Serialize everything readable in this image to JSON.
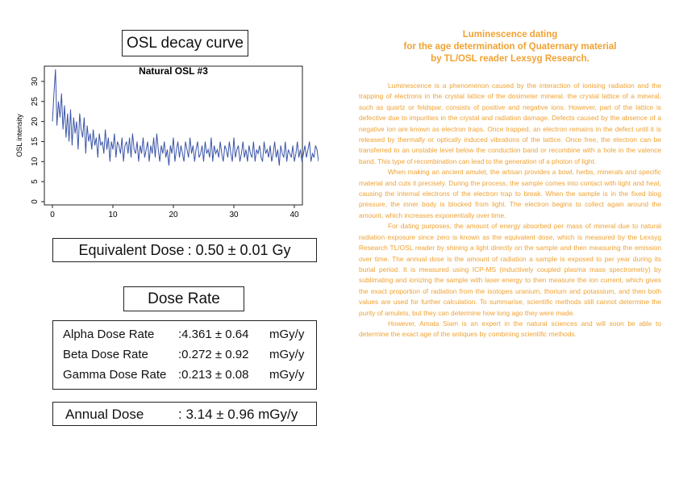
{
  "osl_title": "OSL decay curve",
  "chart_data": {
    "type": "line",
    "title": "Natural OSL #3",
    "xlabel": "",
    "ylabel": "OSL intensity",
    "xlim": [
      0,
      40
    ],
    "ylim": [
      0,
      33
    ],
    "x_ticks": [
      "0",
      "10",
      "20",
      "30",
      "40"
    ],
    "y_ticks": [
      "0",
      "5",
      "10",
      "15",
      "20",
      "25",
      "30"
    ],
    "x_start": 0,
    "x_step": 0.25,
    "color": "#3a55a8",
    "grid": false,
    "series": [
      {
        "values": [
          20,
          27,
          33,
          19,
          25,
          21,
          27,
          18,
          24,
          16,
          22,
          15,
          23,
          14,
          21,
          17,
          20,
          13,
          22,
          18,
          16,
          21,
          12,
          19,
          15,
          17,
          13,
          18,
          14,
          16,
          11,
          17,
          14,
          15,
          12,
          18,
          13,
          16,
          10,
          15,
          13,
          17,
          11,
          15,
          14,
          12,
          16,
          10,
          14,
          15,
          12,
          16,
          11,
          17,
          13,
          12,
          15,
          10,
          14,
          12,
          16,
          11,
          13,
          15,
          10,
          14,
          12,
          16,
          11,
          17,
          13,
          10,
          14,
          12,
          15,
          11,
          13,
          9,
          14,
          12,
          16,
          10,
          13,
          15,
          11,
          14,
          12,
          10,
          15,
          13,
          11,
          16,
          12,
          14,
          10,
          13,
          15,
          11,
          12,
          14,
          10,
          15,
          12,
          13,
          11,
          16,
          10,
          14,
          12,
          13,
          11,
          15,
          12,
          10,
          14,
          13,
          11,
          15,
          12,
          10,
          16,
          11,
          13,
          14,
          10,
          12,
          15,
          11,
          13,
          10,
          14,
          12,
          11,
          15,
          10,
          13,
          12,
          14,
          11,
          10,
          15,
          12,
          13,
          11,
          14,
          10,
          12,
          15,
          11,
          13,
          9,
          14,
          12,
          11,
          15,
          10,
          13,
          12,
          11,
          14,
          10,
          12,
          15,
          11,
          13,
          10,
          12,
          14,
          11,
          13,
          15,
          10,
          12,
          11,
          14,
          13,
          10,
          12,
          11,
          15,
          12,
          10,
          13,
          11,
          14,
          12,
          10,
          13,
          11,
          15,
          12,
          10,
          14,
          11,
          13,
          12,
          10,
          15,
          11,
          17
        ]
      }
    ]
  },
  "equivalent_dose": {
    "label": "Equivalent Dose",
    "value": ": 0.50 ± 0.01 Gy"
  },
  "dose_rate_title": "Dose Rate",
  "dose_rates": [
    {
      "name": "Alpha Dose Rate",
      "value": ":4.361 ± 0.64",
      "unit": "mGy/y"
    },
    {
      "name": "Beta Dose Rate",
      "value": ":0.272 ± 0.92",
      "unit": "mGy/y"
    },
    {
      "name": "Gamma Dose Rate",
      "value": ":0.213 ± 0.08",
      "unit": "mGy/y"
    }
  ],
  "annual_dose": {
    "label": "Annual Dose",
    "value": ": 3.14 ± 0.96 mGy/y"
  },
  "article": {
    "title_lines": [
      "Luminescence dating",
      "for the age determination of Quaternary material",
      "by TL/OSL reader Lexsyg Research."
    ],
    "paragraphs": [
      "Luminescence is a phenomenon caused by the interaction of ionising radiation and the trapping of electrons in the crystal lattice of the dosimeter mineral. the crystal lattice of a mineral, such as quartz or feldspar, consists of positive and negative ions. However, part of the lattice is defective due to impurities in the crystal and radiation damage. Defects caused by the absence of a negative ion are known as electron traps. Once trapped, an electron remains in the defect until it is released by thermally or optically induced vibrations of the lattice. Once free, the electron can be transferred to an unstable level below the conduction band or recombine with a hole in the valence band. This type of recombination can lead to the generation of a photon of light.",
      "When making an ancient amulet, the artisan provides a bowl, herbs, minerals and specific material and cuts it precisely. During the process, the sample comes into contact with light and heat, causing the internal electrons of the electron trap to break. When the sample is in the fixed blog pressure, the inner body is blocked from light. The electron begins to collect again around the amount, which increases exponentially over time.",
      "For dating purposes, the amount of energy absorbed per mass of mineral due to natural radiation exposure since zero is known as the equivalent dose, which is measured by the Lexsyg Research TL/OSL reader by shining a light directly on the sample and then measuring the emission over time. The annual dose is the amount of radiation a sample is exposed to per year during its burial period. It is measured using ICP-MS (inductively coupled plasma mass spectrometry) by sublimating and ionizing the sample with laser energy to then measure the ion current, which gives the exact proportion of radiation from the isotopes uranium, thorium and potassium, and then both values are used for further calculation. To summarise, scientific methods still cannot determine the purity of amulets, but they can determine how long ago they were made.",
      "However, Amata Siam is an expert in the natural sciences and will soon be able to determine the exact age of the antiques by combining scientific methods."
    ]
  }
}
